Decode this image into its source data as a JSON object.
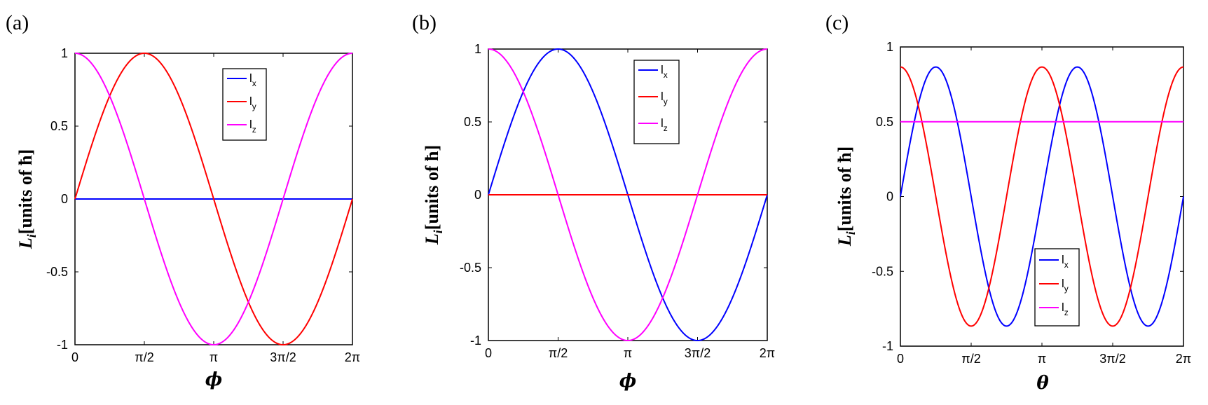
{
  "chart_data": [
    {
      "panel": "(a)",
      "type": "line",
      "xlabel": "ϕ",
      "ylabel_main": "L",
      "ylabel_sub": "i",
      "ylabel_rest": "[units of ħ]",
      "xlim": [
        0,
        6.2832
      ],
      "ylim": [
        -1,
        1
      ],
      "xticks": [
        0,
        1.5708,
        3.1416,
        4.7124,
        6.2832
      ],
      "xticklabels": [
        "0",
        "π/2",
        "π",
        "3π/2",
        "2π"
      ],
      "yticks": [
        -1,
        -0.5,
        0,
        0.5,
        1
      ],
      "yticklabels": [
        "-1",
        "-0.5",
        "0",
        "0.5",
        "1"
      ],
      "legend_position": "top-right",
      "series": [
        {
          "name": "l",
          "sub": "x",
          "color": "#0000ff",
          "formula": "0",
          "amp": 0,
          "phase": 0,
          "freq": 1,
          "offset": 0
        },
        {
          "name": "l",
          "sub": "y",
          "color": "#ff0000",
          "formula": "sin(ϕ)",
          "amp": 1,
          "phase": 0,
          "freq": 1,
          "offset": 0
        },
        {
          "name": "l",
          "sub": "z",
          "color": "#ff00ff",
          "formula": "cos(ϕ)",
          "amp": 1,
          "phase": 1.5708,
          "freq": 1,
          "offset": 0
        }
      ]
    },
    {
      "panel": "(b)",
      "type": "line",
      "xlabel": "ϕ",
      "ylabel_main": "L",
      "ylabel_sub": "i",
      "ylabel_rest": "[units of ħ]",
      "xlim": [
        0,
        6.2832
      ],
      "ylim": [
        -1,
        1
      ],
      "xticks": [
        0,
        1.5708,
        3.1416,
        4.7124,
        6.2832
      ],
      "xticklabels": [
        "0",
        "π/2",
        "π",
        "3π/2",
        "2π"
      ],
      "yticks": [
        -1,
        -0.5,
        0,
        0.5,
        1
      ],
      "yticklabels": [
        "-1",
        "-0.5",
        "0",
        "0.5",
        "1"
      ],
      "legend_position": "top-right",
      "series": [
        {
          "name": "l",
          "sub": "x",
          "color": "#0000ff",
          "formula": "sin(ϕ)",
          "amp": 1,
          "phase": 0,
          "freq": 1,
          "offset": 0
        },
        {
          "name": "l",
          "sub": "y",
          "color": "#ff0000",
          "formula": "0",
          "amp": 0,
          "phase": 0,
          "freq": 1,
          "offset": 0
        },
        {
          "name": "l",
          "sub": "z",
          "color": "#ff00ff",
          "formula": "cos(ϕ)",
          "amp": 1,
          "phase": 1.5708,
          "freq": 1,
          "offset": 0
        }
      ]
    },
    {
      "panel": "(c)",
      "type": "line",
      "xlabel": "θ",
      "ylabel_main": "L",
      "ylabel_sub": "i",
      "ylabel_rest": "[units of ħ]",
      "xlim": [
        0,
        6.2832
      ],
      "ylim": [
        -1,
        1
      ],
      "xticks": [
        0,
        1.5708,
        3.1416,
        4.7124,
        6.2832
      ],
      "xticklabels": [
        "0",
        "π/2",
        "π",
        "3π/2",
        "2π"
      ],
      "yticks": [
        -1,
        -0.5,
        0,
        0.5,
        1
      ],
      "yticklabels": [
        "-1",
        "-0.5",
        "0",
        "0.5",
        "1"
      ],
      "legend_position": "bottom-right",
      "series": [
        {
          "name": "l",
          "sub": "x",
          "color": "#0000ff",
          "formula": "0.866·sin(2θ)",
          "amp": 0.866,
          "phase": 0,
          "freq": 2,
          "offset": 0
        },
        {
          "name": "l",
          "sub": "y",
          "color": "#ff0000",
          "formula": "0.866·cos(2θ)",
          "amp": 0.866,
          "phase": 1.5708,
          "freq": 2,
          "offset": 0
        },
        {
          "name": "l",
          "sub": "z",
          "color": "#ff00ff",
          "formula": "0.5",
          "amp": 0,
          "phase": 0,
          "freq": 1,
          "offset": 0.5
        }
      ]
    }
  ]
}
